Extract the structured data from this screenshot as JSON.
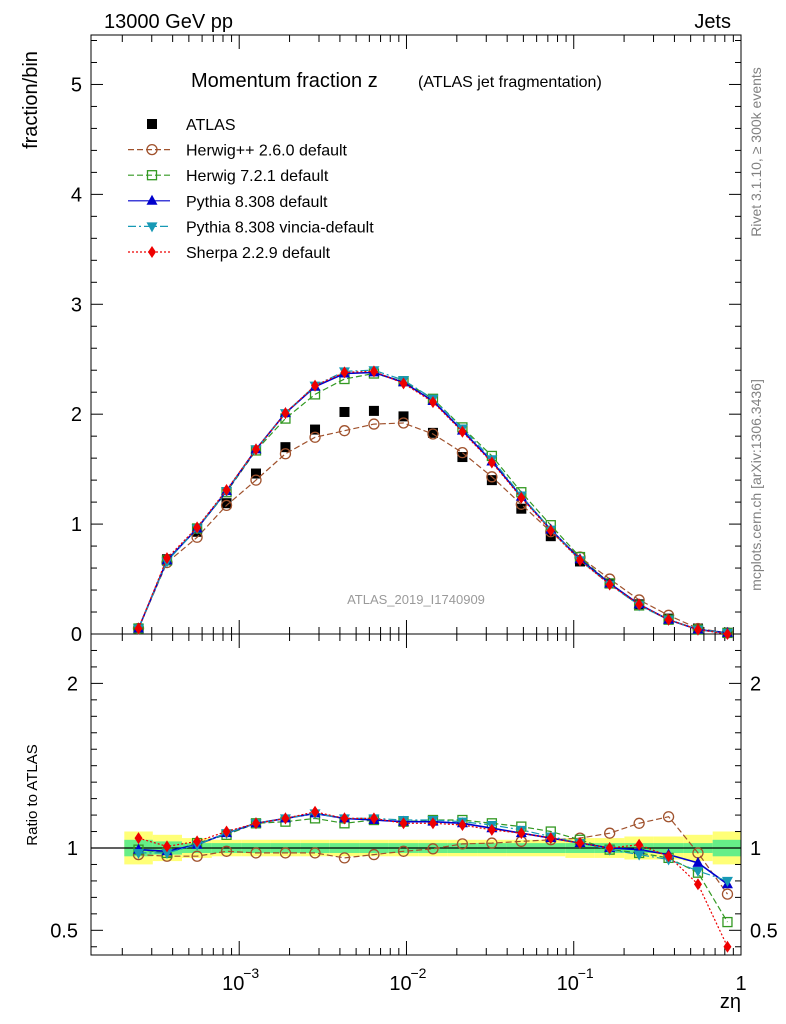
{
  "header": {
    "left": "13000 GeV pp",
    "right": "Jets"
  },
  "side": {
    "rivet": "Rivet 3.1.10, ≥ 300k events",
    "source": "mcplots.cern.ch [arXiv:1306.3436]"
  },
  "chart_data": [
    {
      "type": "line",
      "title_main": "Momentum fraction z",
      "title_sub": "(ATLAS jet fragmentation)",
      "ylabel": "fraction/bin",
      "analysis_id": "ATLAS_2019_I1740909",
      "x_scale": "log",
      "xlim": [
        0.00013,
        1.0
      ],
      "ylim": [
        0,
        5.45
      ],
      "y_ticks": [
        0,
        1,
        2,
        3,
        4,
        5
      ],
      "y_tick_labels": [
        "0",
        "1",
        "2",
        "3",
        "4",
        "5"
      ],
      "legend_position": "top-left",
      "x": [
        0.00025,
        0.00037,
        0.00056,
        0.00084,
        0.00126,
        0.00189,
        0.00284,
        0.00426,
        0.00639,
        0.0096,
        0.0144,
        0.0216,
        0.0324,
        0.0486,
        0.0729,
        0.109,
        0.164,
        0.246,
        0.369,
        0.553,
        0.83
      ],
      "series": [
        {
          "name": "ATLAS",
          "color": "#000000",
          "marker": "square-filled",
          "dash": "none",
          "values": [
            0.05,
            0.68,
            0.93,
            1.19,
            1.46,
            1.7,
            1.86,
            2.02,
            2.03,
            1.98,
            1.83,
            1.61,
            1.4,
            1.14,
            0.89,
            0.66,
            0.46,
            0.27,
            0.14,
            0.05,
            0.01
          ]
        },
        {
          "name": "Herwig++ 2.6.0 default",
          "color": "#a0522d",
          "marker": "circle-open",
          "dash": "6,3",
          "values": [
            0.05,
            0.65,
            0.88,
            1.17,
            1.4,
            1.64,
            1.79,
            1.85,
            1.91,
            1.92,
            1.82,
            1.65,
            1.43,
            1.18,
            0.93,
            0.7,
            0.5,
            0.31,
            0.17,
            0.05,
            0.01
          ]
        },
        {
          "name": "Herwig 7.2.1 default",
          "color": "#339922",
          "marker": "square-open",
          "dash": "6,3",
          "values": [
            0.05,
            0.67,
            0.96,
            1.29,
            1.67,
            1.96,
            2.18,
            2.32,
            2.37,
            2.3,
            2.14,
            1.88,
            1.62,
            1.29,
            0.99,
            0.7,
            0.46,
            0.26,
            0.13,
            0.04,
            0.01
          ]
        },
        {
          "name": "Pythia 8.308 default",
          "color": "#0000cc",
          "marker": "triangle-up",
          "dash": "none",
          "values": [
            0.05,
            0.67,
            0.96,
            1.3,
            1.68,
            2.01,
            2.25,
            2.37,
            2.38,
            2.29,
            2.12,
            1.85,
            1.57,
            1.25,
            0.95,
            0.68,
            0.46,
            0.27,
            0.13,
            0.04,
            0.01
          ]
        },
        {
          "name": "Pythia 8.308 vincia-default",
          "color": "#1799b5",
          "marker": "triangle-down",
          "dash": "8,3,2,3",
          "values": [
            0.05,
            0.66,
            0.96,
            1.3,
            1.68,
            2.01,
            2.26,
            2.39,
            2.4,
            2.31,
            2.14,
            1.87,
            1.59,
            1.26,
            0.95,
            0.67,
            0.45,
            0.26,
            0.13,
            0.04,
            0.01
          ]
        },
        {
          "name": "Sherpa 2.2.9 default",
          "color": "#ee0000",
          "marker": "diamond",
          "dash": "2,2",
          "values": [
            0.05,
            0.69,
            0.97,
            1.31,
            1.68,
            2.01,
            2.26,
            2.38,
            2.39,
            2.28,
            2.11,
            1.84,
            1.56,
            1.24,
            0.94,
            0.67,
            0.45,
            0.27,
            0.13,
            0.04,
            0.0
          ]
        }
      ]
    },
    {
      "type": "line",
      "ylabel": "Ratio to ATLAS",
      "xlabel": "zη",
      "x_scale": "log",
      "xlim": [
        0.00013,
        1.0
      ],
      "ylim": [
        0.35,
        2.3
      ],
      "y_ticks": [
        0.5,
        1,
        2
      ],
      "y_tick_labels": [
        "0.5",
        "1",
        "2"
      ],
      "x_ticks": [
        0.001,
        0.01,
        0.1,
        1
      ],
      "x_tick_labels": [
        "10",
        "10",
        "10",
        "1"
      ],
      "x_tick_exponents": [
        "−3",
        "−2",
        "−1",
        ""
      ],
      "x": [
        0.00025,
        0.00037,
        0.00056,
        0.00084,
        0.00126,
        0.00189,
        0.00284,
        0.00426,
        0.00639,
        0.0096,
        0.0144,
        0.0216,
        0.0324,
        0.0486,
        0.0729,
        0.109,
        0.164,
        0.246,
        0.369,
        0.553,
        0.83
      ],
      "band_inner": [
        0.05,
        0.04,
        0.03,
        0.03,
        0.03,
        0.03,
        0.03,
        0.03,
        0.03,
        0.03,
        0.03,
        0.03,
        0.03,
        0.03,
        0.03,
        0.03,
        0.03,
        0.03,
        0.03,
        0.03,
        0.05
      ],
      "band_outer": [
        0.1,
        0.08,
        0.06,
        0.05,
        0.05,
        0.05,
        0.05,
        0.05,
        0.05,
        0.05,
        0.05,
        0.05,
        0.05,
        0.05,
        0.05,
        0.06,
        0.06,
        0.07,
        0.07,
        0.08,
        0.1
      ],
      "band_colors": {
        "inner": "#66ee88",
        "outer": "#ffff77"
      },
      "series": [
        {
          "name": "Herwig++ 2.6.0 default",
          "color": "#a0522d",
          "marker": "circle-open",
          "dash": "6,3",
          "values": [
            0.96,
            0.95,
            0.95,
            0.98,
            0.97,
            0.97,
            0.97,
            0.94,
            0.96,
            0.98,
            0.995,
            1.025,
            1.03,
            1.04,
            1.05,
            1.06,
            1.09,
            1.15,
            1.19,
            0.97,
            0.72
          ]
        },
        {
          "name": "Herwig 7.2.1 default",
          "color": "#339922",
          "marker": "square-open",
          "dash": "6,3",
          "values": [
            0.99,
            0.97,
            1.03,
            1.08,
            1.15,
            1.16,
            1.18,
            1.15,
            1.17,
            1.16,
            1.17,
            1.17,
            1.15,
            1.13,
            1.1,
            1.05,
            0.99,
            0.97,
            0.94,
            0.85,
            0.55
          ]
        },
        {
          "name": "Pythia 8.308 default",
          "color": "#0000cc",
          "marker": "triangle-up",
          "dash": "none",
          "values": [
            0.99,
            0.98,
            1.02,
            1.09,
            1.15,
            1.18,
            1.21,
            1.18,
            1.17,
            1.16,
            1.16,
            1.15,
            1.12,
            1.09,
            1.06,
            1.03,
            1.0,
            0.99,
            0.96,
            0.91,
            0.78
          ]
        },
        {
          "name": "Pythia 8.308 vincia-default",
          "color": "#1799b5",
          "marker": "triangle-down",
          "dash": "8,3,2,3",
          "values": [
            0.97,
            0.97,
            1.02,
            1.09,
            1.15,
            1.18,
            1.21,
            1.18,
            1.18,
            1.17,
            1.17,
            1.16,
            1.14,
            1.11,
            1.07,
            1.03,
            0.99,
            0.96,
            0.93,
            0.86,
            0.8
          ]
        },
        {
          "name": "Sherpa 2.2.9 default",
          "color": "#ee0000",
          "marker": "diamond",
          "dash": "2,2",
          "values": [
            1.06,
            1.01,
            1.04,
            1.1,
            1.15,
            1.18,
            1.22,
            1.18,
            1.18,
            1.15,
            1.15,
            1.14,
            1.11,
            1.09,
            1.06,
            1.03,
            1.0,
            1.02,
            0.95,
            0.78,
            0.4
          ]
        }
      ]
    }
  ]
}
